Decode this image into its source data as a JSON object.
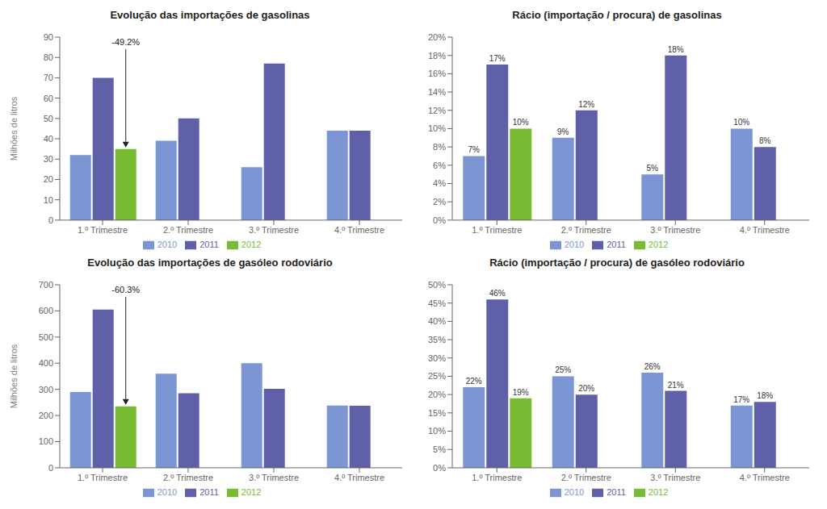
{
  "chart_data": [
    {
      "type": "bar",
      "title": "Evolução das importações de gasolinas",
      "y_label": "Milhões de litros",
      "categories": [
        "1.º Trimestre",
        "2.º Trimestre",
        "3.º Trimestre",
        "4.º Trimestre"
      ],
      "series": [
        {
          "name": "2010",
          "color": "#7b96d2",
          "values": [
            32,
            39,
            26,
            44
          ]
        },
        {
          "name": "2011",
          "color": "#6060a8",
          "values": [
            70,
            50,
            77,
            44
          ]
        },
        {
          "name": "2012",
          "color": "#77bb33",
          "values": [
            35,
            null,
            null,
            null
          ]
        }
      ],
      "ylim": [
        0,
        90
      ],
      "yticks": [
        0,
        10,
        20,
        30,
        40,
        50,
        60,
        70,
        80,
        90
      ],
      "annotation": "-49.2%",
      "legend": "bottom"
    },
    {
      "type": "bar",
      "title": "Rácio (importação / procura) de gasolinas",
      "categories": [
        "1.º Trimestre",
        "2.º Trimestre",
        "3.º Trimestre",
        "4.º Trimestre"
      ],
      "series": [
        {
          "name": "2010",
          "color": "#7b96d2",
          "values": [
            0.07,
            0.09,
            0.05,
            0.1
          ],
          "value_labels": [
            "7%",
            "9%",
            "5%",
            "10%"
          ]
        },
        {
          "name": "2011",
          "color": "#6060a8",
          "values": [
            0.17,
            0.12,
            0.18,
            0.08
          ],
          "value_labels": [
            "17%",
            "12%",
            "18%",
            "8%"
          ]
        },
        {
          "name": "2012",
          "color": "#77bb33",
          "values": [
            0.1,
            null,
            null,
            null
          ],
          "value_labels": [
            "10%",
            null,
            null,
            null
          ]
        }
      ],
      "ylim": [
        0,
        0.2
      ],
      "yticks": [
        {
          "value": 0,
          "label": "0%"
        },
        {
          "value": 0.02,
          "label": "2%"
        },
        {
          "value": 0.04,
          "label": "4%"
        },
        {
          "value": 0.06,
          "label": "6%"
        },
        {
          "value": 0.08,
          "label": "8%"
        },
        {
          "value": 0.1,
          "label": "10%"
        },
        {
          "value": 0.12,
          "label": "12%"
        },
        {
          "value": 0.14,
          "label": "14%"
        },
        {
          "value": 0.16,
          "label": "16%"
        },
        {
          "value": 0.18,
          "label": "18%"
        },
        {
          "value": 0.2,
          "label": "20%"
        }
      ],
      "data_labels": true,
      "legend": "bottom"
    },
    {
      "type": "bar",
      "title": "Evolução das importações de gasóleo rodoviário",
      "y_label": "Milhões de litros",
      "categories": [
        "1.º Trimestre",
        "2.º Trimestre",
        "3.º Trimestre",
        "4.º Trimestre"
      ],
      "series": [
        {
          "name": "2010",
          "color": "#7b96d2",
          "values": [
            290,
            360,
            400,
            238
          ]
        },
        {
          "name": "2011",
          "color": "#6060a8",
          "values": [
            605,
            285,
            302,
            237
          ]
        },
        {
          "name": "2012",
          "color": "#77bb33",
          "values": [
            235,
            null,
            null,
            null
          ]
        }
      ],
      "ylim": [
        0,
        700
      ],
      "yticks": [
        0,
        100,
        200,
        300,
        400,
        500,
        600,
        700
      ],
      "annotation": "-60.3%",
      "legend": "bottom"
    },
    {
      "type": "bar",
      "title": "Rácio (importação / procura) de gasóleo rodoviário",
      "categories": [
        "1.º Trimestre",
        "2.º Trimestre",
        "3.º Trimestre",
        "4.º Trimestre"
      ],
      "series": [
        {
          "name": "2010",
          "color": "#7b96d2",
          "values": [
            0.22,
            0.25,
            0.26,
            0.17
          ],
          "value_labels": [
            "22%",
            "25%",
            "26%",
            "17%"
          ]
        },
        {
          "name": "2011",
          "color": "#6060a8",
          "values": [
            0.46,
            0.2,
            0.21,
            0.18
          ],
          "value_labels": [
            "46%",
            "20%",
            "21%",
            "18%"
          ]
        },
        {
          "name": "2012",
          "color": "#77bb33",
          "values": [
            0.19,
            null,
            null,
            null
          ],
          "value_labels": [
            "19%",
            null,
            null,
            null
          ]
        }
      ],
      "ylim": [
        0,
        0.5
      ],
      "yticks": [
        {
          "value": 0,
          "label": "0%"
        },
        {
          "value": 0.05,
          "label": "5%"
        },
        {
          "value": 0.1,
          "label": "10%"
        },
        {
          "value": 0.15,
          "label": "15%"
        },
        {
          "value": 0.2,
          "label": "20%"
        },
        {
          "value": 0.25,
          "label": "25%"
        },
        {
          "value": 0.3,
          "label": "30%"
        },
        {
          "value": 0.35,
          "label": "35%"
        },
        {
          "value": 0.4,
          "label": "40%"
        },
        {
          "value": 0.45,
          "label": "45%"
        },
        {
          "value": 0.5,
          "label": "50%"
        }
      ],
      "data_labels": true,
      "legend": "bottom"
    }
  ]
}
